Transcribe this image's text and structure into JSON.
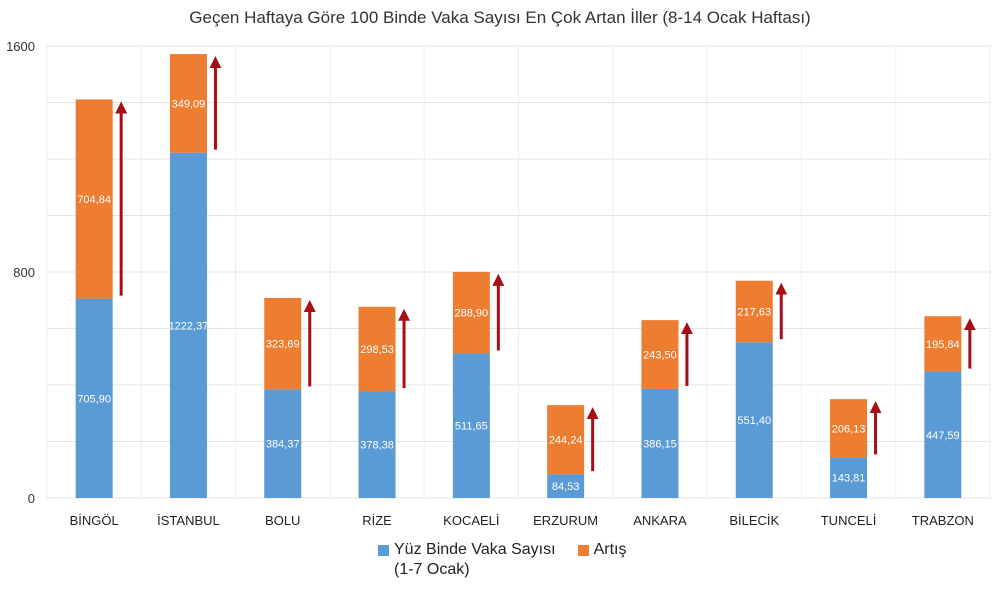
{
  "chart_data": {
    "type": "bar",
    "stacked": true,
    "title": "Geçen Haftaya Göre 100 Binde Vaka Sayısı En Çok Artan İller (8-14 Ocak Haftası)",
    "categories": [
      "BİNGÖL",
      "İSTANBUL",
      "BOLU",
      "RİZE",
      "KOCAELİ",
      "ERZURUM",
      "ANKARA",
      "BİLECİK",
      "TUNCELİ",
      "TRABZON"
    ],
    "series": [
      {
        "name": "Yüz Binde Vaka Sayısı (1-7 Ocak)",
        "legend_lines": [
          "Yüz Binde Vaka Sayısı",
          "(1-7 Ocak)"
        ],
        "color": "#5b9bd5",
        "values": [
          705.9,
          1222.37,
          384.37,
          378.38,
          511.65,
          84.53,
          386.15,
          551.4,
          143.81,
          447.59
        ],
        "labels": [
          "705,90",
          "1222,37",
          "384,37",
          "378,38",
          "511,65",
          "84,53",
          "386,15",
          "551,40",
          "143,81",
          "447,59"
        ]
      },
      {
        "name": "Artış",
        "legend_lines": [
          "Artış"
        ],
        "color": "#ed7d31",
        "values": [
          704.84,
          349.09,
          323.69,
          298.53,
          288.9,
          244.24,
          243.5,
          217.63,
          206.13,
          195.84
        ],
        "labels": [
          "704,84",
          "349,09",
          "323,69",
          "298,53",
          "288,90",
          "244,24",
          "243,50",
          "217,63",
          "206,13",
          "195,84"
        ]
      }
    ],
    "arrow_color": "#a50f15",
    "ylim": [
      0,
      1600
    ],
    "yticks": [
      0,
      800,
      1600
    ],
    "grid_step": 200,
    "grid": true,
    "legend_position": "bottom"
  }
}
